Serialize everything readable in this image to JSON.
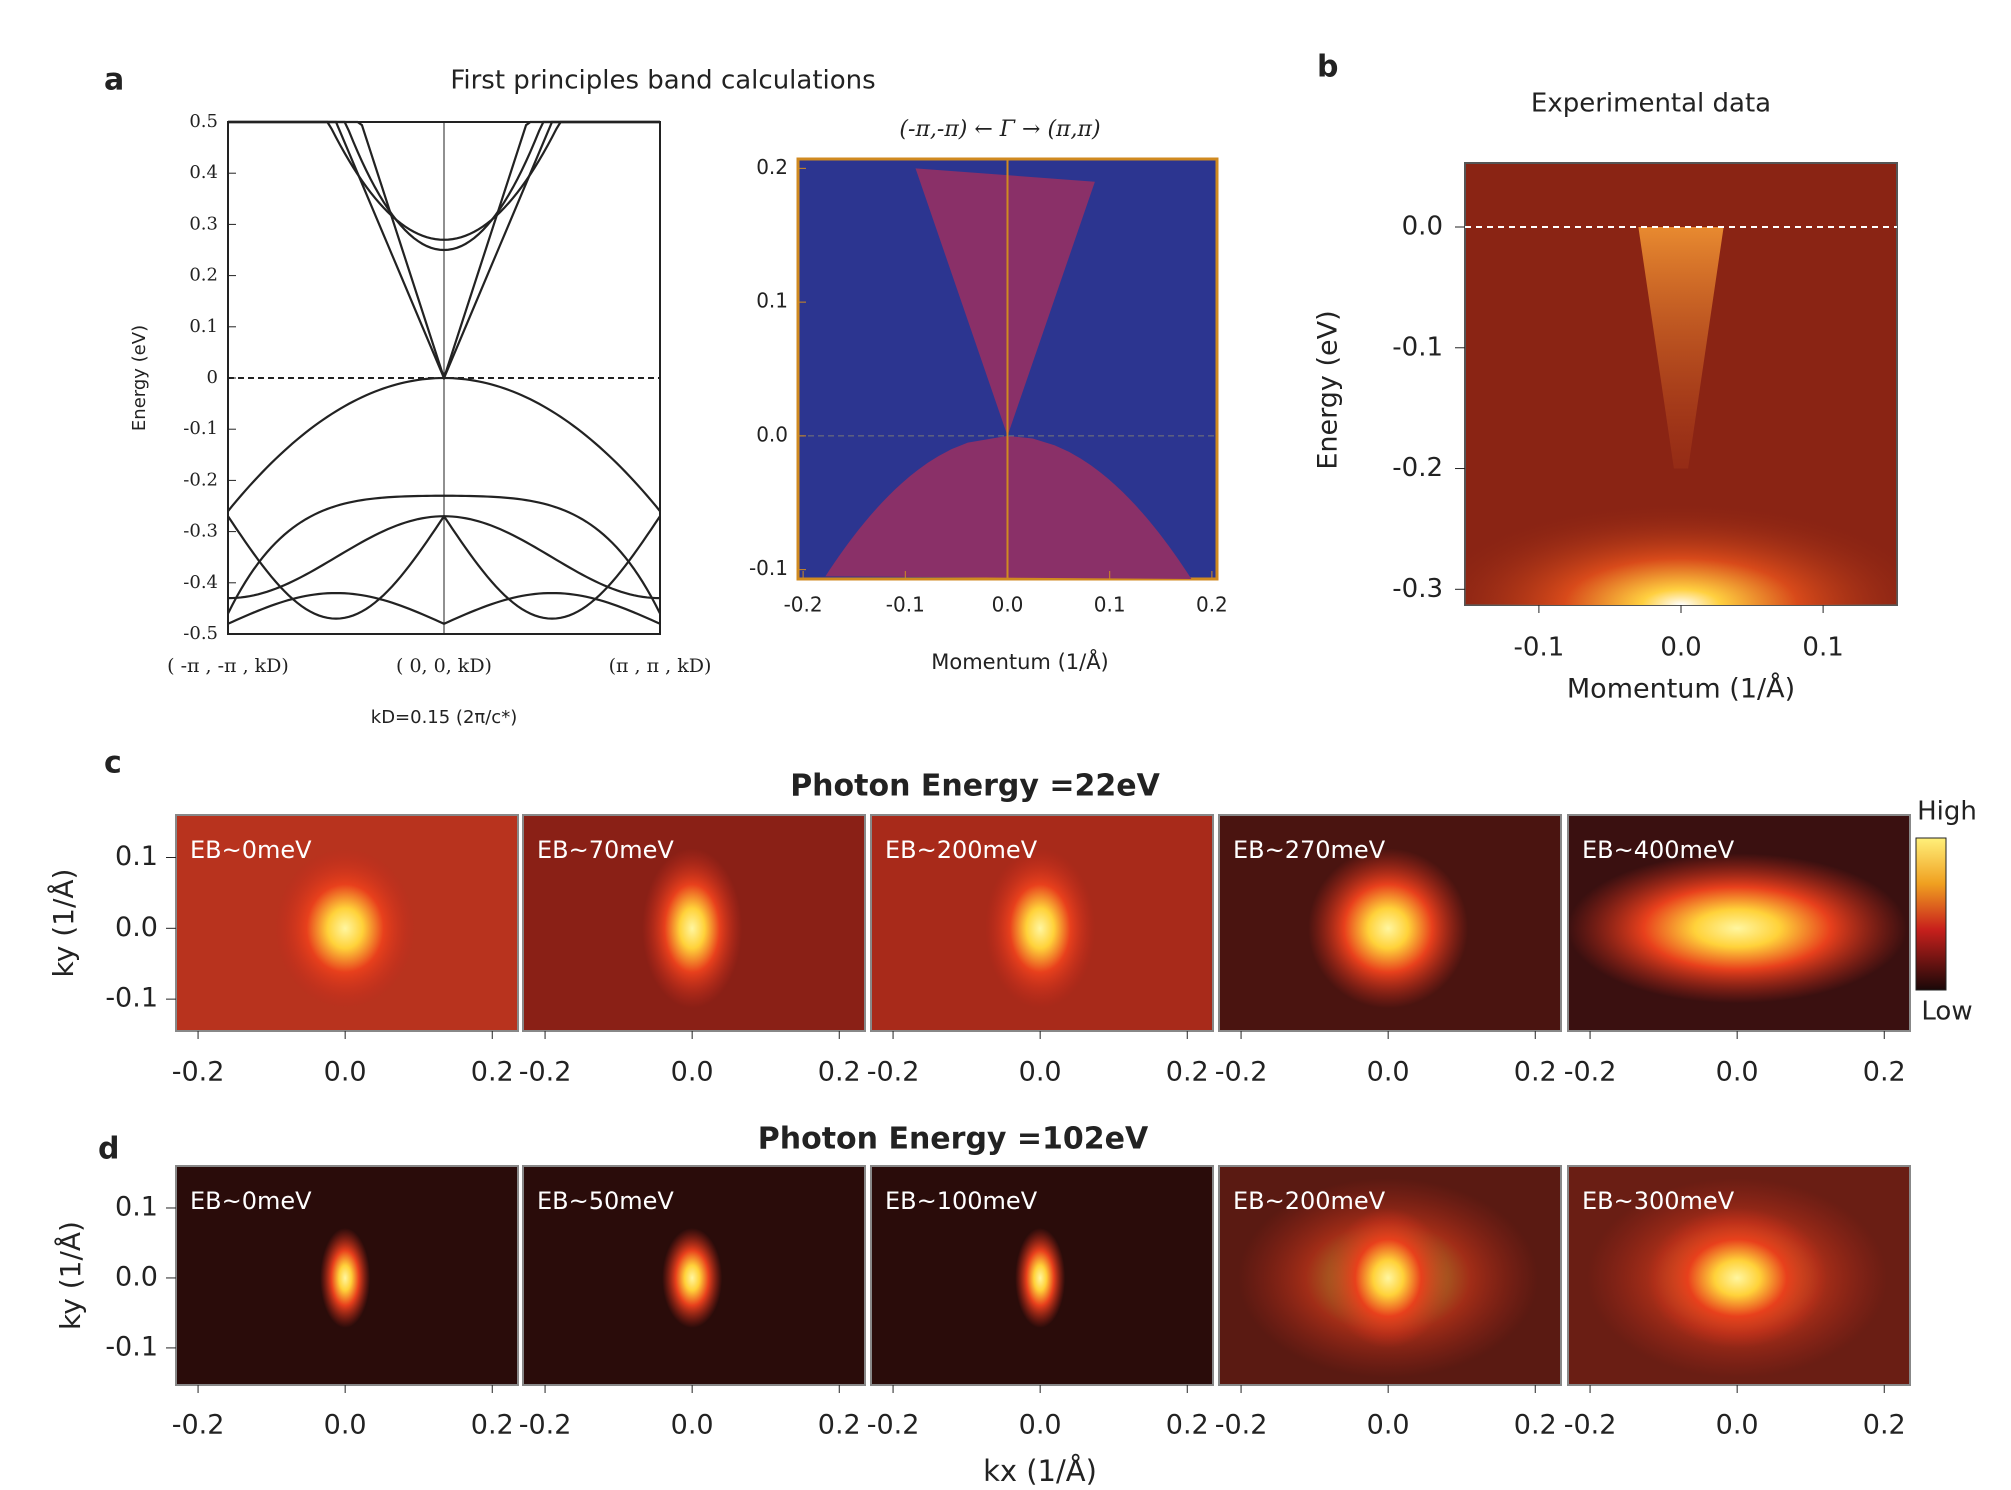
{
  "chart_data": [
    {
      "type": "line",
      "panel": "a",
      "title": "First principles band calculations",
      "ylabel": "Energy (eV)",
      "categories": [
        "( -π , -π , kD)",
        "( 0, 0, kD)",
        "(π , π , kD)"
      ],
      "note": "kD=0.15 (2π/c*)",
      "ylim": [
        -0.5,
        0.5
      ],
      "yticks": [
        -0.5,
        -0.4,
        -0.3,
        -0.2,
        -0.1,
        0,
        0.1,
        0.2,
        0.3,
        0.4,
        0.5
      ]
    },
    {
      "type": "region",
      "title": "(-π,-π) ← Γ → (π,π)",
      "xlabel": "Momentum (1/Å)",
      "xlim": [
        -0.205,
        0.205
      ],
      "ylim": [
        -0.107,
        0.207
      ],
      "xticks": [
        -0.2,
        -0.1,
        {
          "value": 0,
          "label": "0.0"
        },
        0.1,
        0.2
      ],
      "yticks": [
        -0.1,
        {
          "value": 0,
          "label": "0.0"
        },
        0.1,
        0.2
      ]
    },
    {
      "type": "heatmap",
      "panel": "b",
      "title": "Experimental data",
      "xlabel": "Momentum (1/Å)",
      "ylabel": "Energy (eV)",
      "xlim": [
        -0.152,
        0.152
      ],
      "ylim": [
        -0.313,
        0.053
      ],
      "xticks": [
        -0.1,
        {
          "value": 0,
          "label": "0.0"
        },
        0.1
      ],
      "yticks": [
        {
          "value": 0,
          "label": "0.0"
        },
        -0.1,
        -0.2,
        -0.3
      ]
    },
    {
      "type": "map-row",
      "panel": "c",
      "title": "Photon Energy =22eV",
      "ylabel": "ky (1/Å)",
      "panels": [
        "EB~0meV",
        "EB~70meV",
        "EB~200meV",
        "EB~270meV",
        "EB~400meV"
      ],
      "colorbar": [
        "High",
        "Low"
      ],
      "xlim": [
        -0.23,
        0.235
      ],
      "ylim": [
        -0.145,
        0.16
      ],
      "xticks": [
        -0.2,
        {
          "value": 0,
          "label": "0.0"
        },
        0.2
      ],
      "yticks": [
        0.1,
        {
          "value": 0,
          "label": "0.0"
        },
        -0.1
      ]
    },
    {
      "type": "map-row",
      "panel": "d",
      "title": "Photon Energy =102eV",
      "ylabel": "ky (1/Å)",
      "xlabel": "kx (1/Å)",
      "panels": [
        "EB~0meV",
        "EB~50meV",
        "EB~100meV",
        "EB~200meV",
        "EB~300meV"
      ],
      "xlim": [
        -0.23,
        0.235
      ],
      "ylim": [
        -0.153,
        0.16
      ],
      "xticks": [
        -0.2,
        {
          "value": 0,
          "label": "0.0"
        },
        0.2
      ],
      "yticks": [
        0.1,
        {
          "value": 0,
          "label": "0.0"
        },
        -0.1
      ]
    }
  ]
}
